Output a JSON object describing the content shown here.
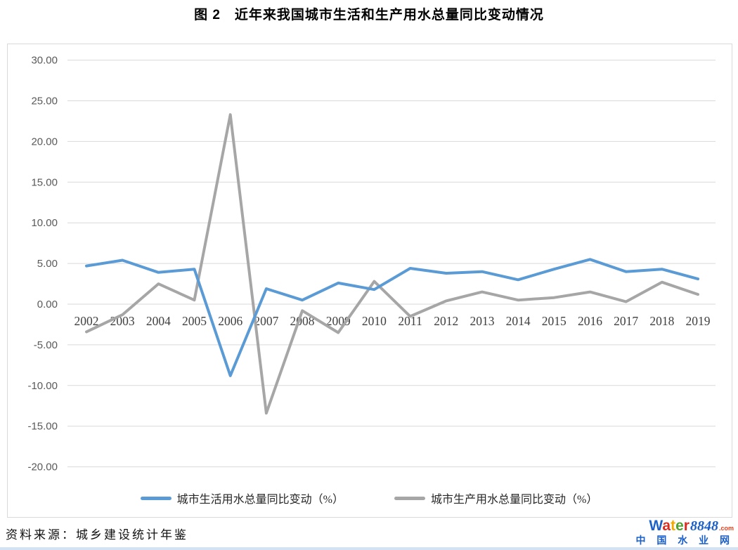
{
  "page": {
    "title": "图 2　近年来我国城市生活和生产用水总量同比变动情况",
    "source_note": "资料来源：城乡建设统计年鉴"
  },
  "chart_data": {
    "type": "line",
    "title": "图 2　近年来我国城市生活和生产用水总量同比变动情况",
    "categories": [
      "2002",
      "2003",
      "2004",
      "2005",
      "2006",
      "2007",
      "2008",
      "2009",
      "2010",
      "2011",
      "2012",
      "2013",
      "2014",
      "2015",
      "2016",
      "2017",
      "2018",
      "2019"
    ],
    "series": [
      {
        "name": "城市生活用水总量同比变动（%）",
        "color": "#5b9bd5",
        "values": [
          4.7,
          5.4,
          3.9,
          4.3,
          -8.8,
          1.9,
          0.5,
          2.6,
          1.8,
          4.4,
          3.8,
          4.0,
          3.0,
          4.3,
          5.5,
          4.0,
          4.3,
          3.1
        ]
      },
      {
        "name": "城市生产用水总量同比变动（%）",
        "color": "#a6a6a6",
        "values": [
          -3.4,
          -1.3,
          2.5,
          0.5,
          23.3,
          -13.4,
          -0.8,
          -3.5,
          2.8,
          -1.5,
          0.4,
          1.5,
          0.5,
          0.8,
          1.5,
          0.3,
          2.7,
          1.2
        ]
      }
    ],
    "ylim": [
      -20,
      30
    ],
    "ytick_step": 5,
    "ytick_labels": [
      "30.00",
      "25.00",
      "20.00",
      "15.00",
      "10.00",
      "5.00",
      "0.00",
      "-5.00",
      "-10.00",
      "-15.00",
      "-20.00"
    ],
    "grid": true,
    "legend_position": "bottom",
    "gridline_color": "#d9d9d9",
    "ytick_color": "#595959",
    "xtick_color": "#404040"
  },
  "logo": {
    "letters": [
      {
        "ch": "W",
        "color": "#1e62c9"
      },
      {
        "ch": "a",
        "color": "#da2c20"
      },
      {
        "ch": "t",
        "color": "#f2a900"
      },
      {
        "ch": "e",
        "color": "#52a231"
      },
      {
        "ch": "r",
        "color": "#da2c20"
      }
    ],
    "number": "8848",
    "number_color": "#1a5fc8",
    "tld": ".com",
    "tld_color": "#e2401b",
    "cn": "中 国 水 业 网",
    "cn_color": "#1a5fc8"
  }
}
